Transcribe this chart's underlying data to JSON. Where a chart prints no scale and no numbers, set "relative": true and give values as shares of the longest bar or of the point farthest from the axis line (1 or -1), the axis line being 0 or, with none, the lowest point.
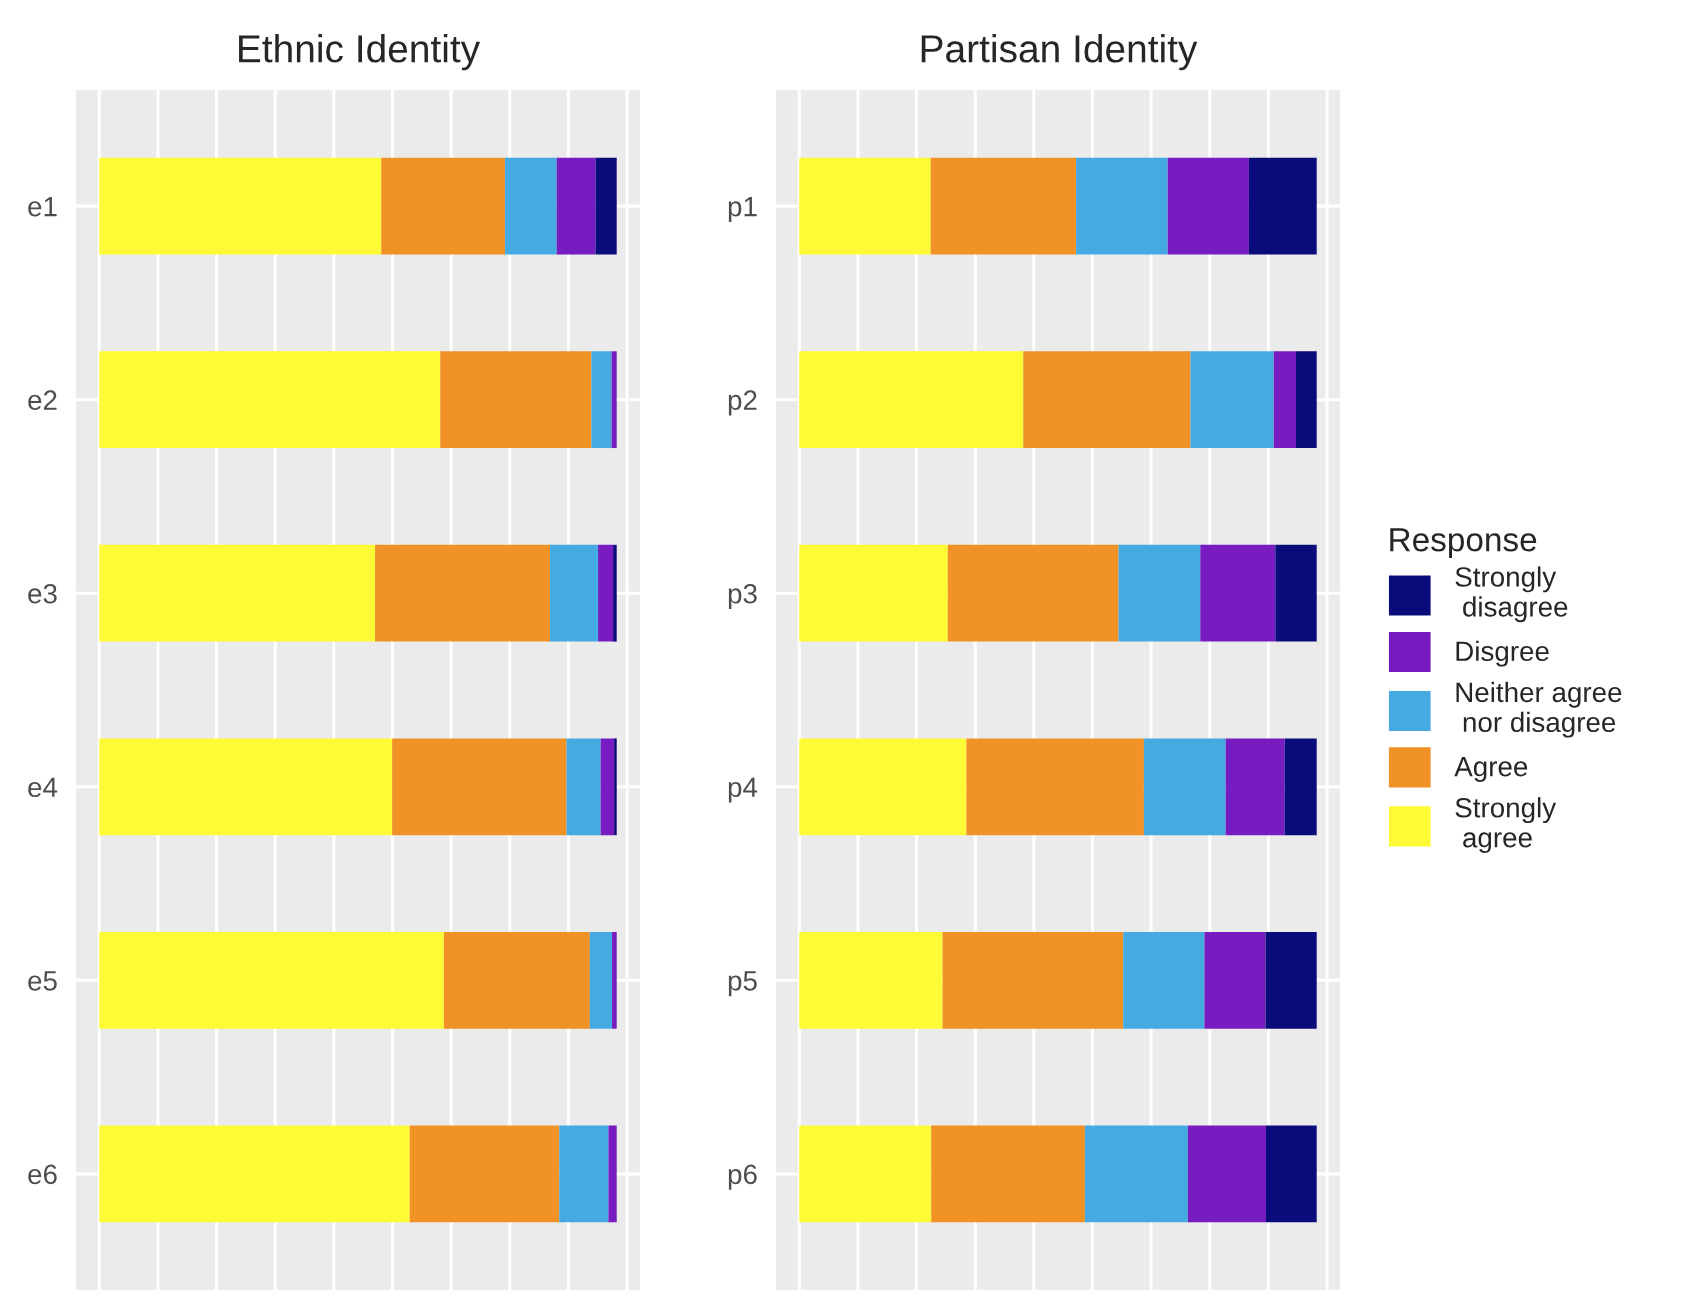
{
  "chart_data": [
    {
      "type": "bar",
      "orientation": "horizontal",
      "stacked": true,
      "relative": true,
      "title": "Ethnic Identity",
      "categories": [
        "e1",
        "e2",
        "e3",
        "e4",
        "e5",
        "e6"
      ],
      "grid": true,
      "tick_labels": "y",
      "legend": false,
      "series": [
        {
          "color": "#fdfb36",
          "values": [
            0.545,
            0.659,
            0.533,
            0.566,
            0.666,
            0.6
          ]
        },
        {
          "color": "#f09226",
          "values": [
            0.239,
            0.292,
            0.338,
            0.337,
            0.282,
            0.289
          ]
        },
        {
          "color": "#45aae2",
          "values": [
            0.1,
            0.039,
            0.093,
            0.066,
            0.043,
            0.095
          ]
        },
        {
          "color": "#761cc0",
          "values": [
            0.075,
            0.01,
            0.029,
            0.026,
            0.009,
            0.016
          ]
        },
        {
          "color": "#0b0c7c",
          "values": [
            0.041,
            0,
            0.007,
            0.005,
            0,
            0
          ]
        }
      ]
    },
    {
      "type": "bar",
      "orientation": "horizontal",
      "stacked": true,
      "relative": true,
      "title": "Partisan Identity",
      "categories": [
        "p1",
        "p2",
        "p3",
        "p4",
        "p5",
        "p6"
      ],
      "grid": true,
      "tick_labels": "y",
      "legend": "right",
      "legend_title": "Response",
      "series": [
        {
          "name": "Strongly\n agree",
          "color": "#fdfb36",
          "values": [
            0.254,
            0.433,
            0.287,
            0.323,
            0.277,
            0.255
          ]
        },
        {
          "name": "Agree",
          "color": "#f09226",
          "values": [
            0.281,
            0.323,
            0.33,
            0.343,
            0.349,
            0.297
          ]
        },
        {
          "name": "Neither agree\n nor disagree",
          "color": "#45aae2",
          "values": [
            0.177,
            0.161,
            0.158,
            0.158,
            0.157,
            0.199
          ]
        },
        {
          "name": "Disgree",
          "color": "#761cc0",
          "values": [
            0.157,
            0.043,
            0.145,
            0.114,
            0.118,
            0.151
          ]
        },
        {
          "name": "Strongly\n disagree",
          "color": "#0b0c7c",
          "values": [
            0.131,
            0.04,
            0.08,
            0.062,
            0.099,
            0.098
          ]
        }
      ]
    }
  ]
}
